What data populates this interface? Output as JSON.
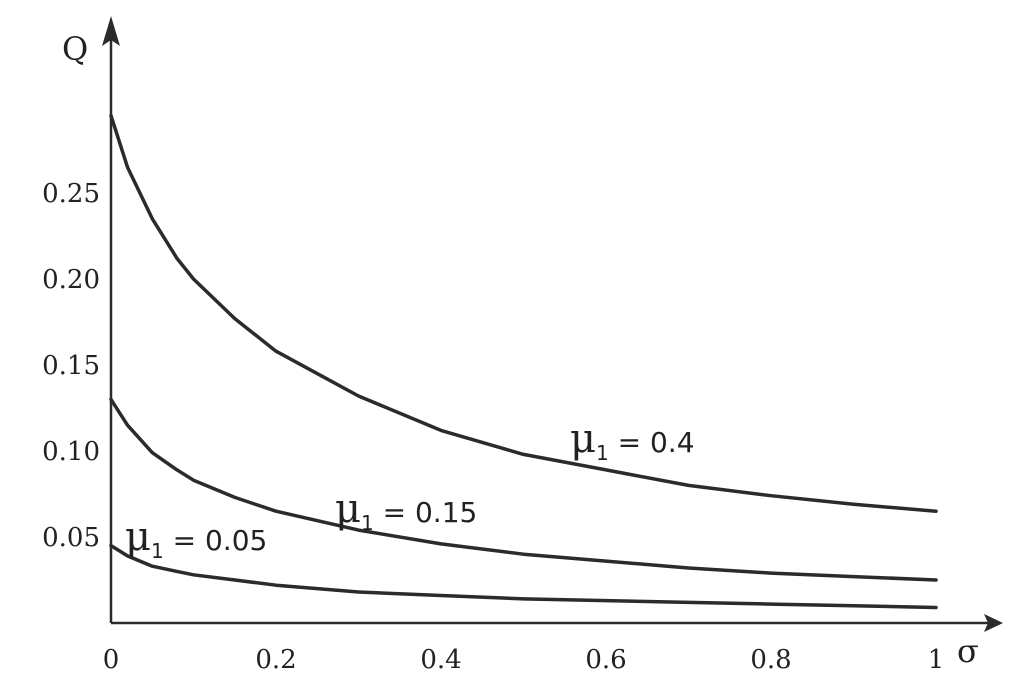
{
  "chart_data": {
    "type": "line",
    "xlabel": "σ",
    "ylabel": "Q",
    "xlim": [
      0,
      1
    ],
    "ylim": [
      0,
      0.3
    ],
    "grid": false,
    "x_ticks": [
      "0",
      "0.2",
      "0.4",
      "0.6",
      "0.8",
      "1"
    ],
    "y_ticks": [
      "0.05",
      "0.10",
      "0.15",
      "0.20",
      "0.25"
    ],
    "x_tick_values": [
      0,
      0.2,
      0.4,
      0.6,
      0.8,
      1
    ],
    "y_tick_values": [
      0.05,
      0.1,
      0.15,
      0.2,
      0.25
    ],
    "series": [
      {
        "name": "μ1 = 0.4",
        "label_symbol": "μ",
        "label_sub": "1",
        "label_rest": " = 0.4",
        "x": [
          0,
          0.02,
          0.05,
          0.08,
          0.1,
          0.15,
          0.2,
          0.3,
          0.4,
          0.5,
          0.6,
          0.7,
          0.8,
          0.9,
          1.0
        ],
        "y": [
          0.295,
          0.265,
          0.235,
          0.212,
          0.2,
          0.177,
          0.158,
          0.132,
          0.112,
          0.098,
          0.089,
          0.08,
          0.074,
          0.069,
          0.065
        ]
      },
      {
        "name": "μ1 = 0.15",
        "label_symbol": "μ",
        "label_sub": "1",
        "label_rest": " = 0.15",
        "x": [
          0,
          0.02,
          0.05,
          0.08,
          0.1,
          0.15,
          0.2,
          0.3,
          0.4,
          0.5,
          0.6,
          0.7,
          0.8,
          0.9,
          1.0
        ],
        "y": [
          0.13,
          0.115,
          0.099,
          0.089,
          0.083,
          0.073,
          0.065,
          0.054,
          0.046,
          0.04,
          0.036,
          0.032,
          0.029,
          0.027,
          0.025
        ]
      },
      {
        "name": "μ1 = 0.05",
        "label_symbol": "μ",
        "label_sub": "1",
        "label_rest": " = 0.05",
        "x": [
          0,
          0.02,
          0.05,
          0.08,
          0.1,
          0.15,
          0.2,
          0.3,
          0.4,
          0.5,
          0.6,
          0.7,
          0.8,
          0.9,
          1.0
        ],
        "y": [
          0.045,
          0.039,
          0.033,
          0.03,
          0.028,
          0.025,
          0.022,
          0.018,
          0.016,
          0.014,
          0.013,
          0.012,
          0.011,
          0.01,
          0.009
        ]
      }
    ]
  }
}
